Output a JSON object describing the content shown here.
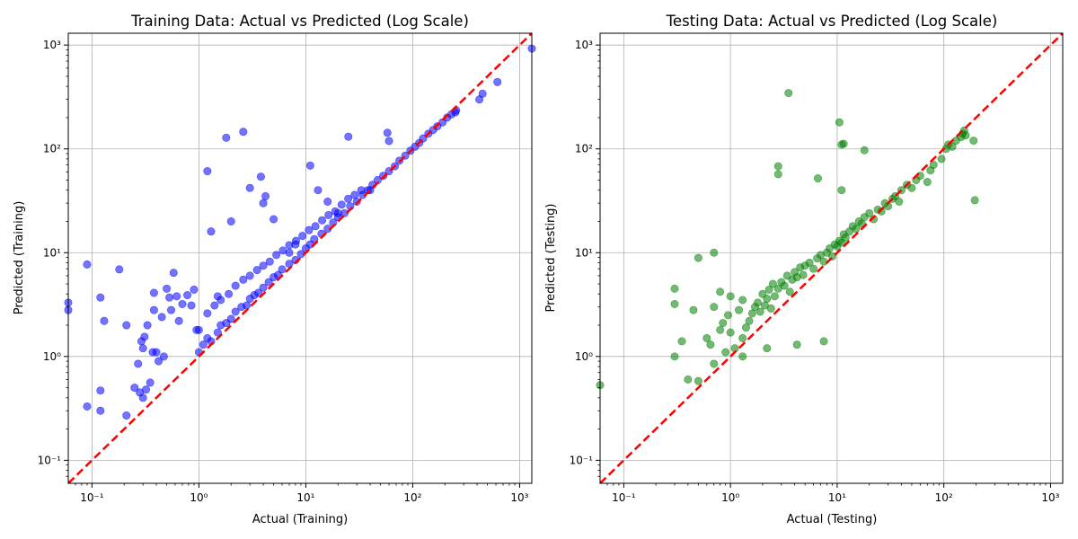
{
  "chart_data": [
    {
      "type": "scatter",
      "title": "Training Data: Actual vs Predicted (Log Scale)",
      "xlabel": "Actual (Training)",
      "ylabel": "Predicted (Training)",
      "xscale": "log",
      "yscale": "log",
      "xlim": [
        0.06,
        1300
      ],
      "ylim": [
        0.06,
        1300
      ],
      "xticks": [
        0.1,
        1,
        10,
        100,
        1000
      ],
      "yticks": [
        0.1,
        1,
        10,
        100,
        1000
      ],
      "grid": true,
      "point_color": "#0000ff",
      "reference_line": {
        "from": 0.06,
        "to": 1300,
        "color": "#ff0000",
        "style": "dashed"
      },
      "x": [
        0.06,
        0.06,
        0.09,
        0.09,
        0.12,
        0.12,
        0.12,
        0.13,
        0.18,
        0.21,
        0.21,
        0.25,
        0.27,
        0.28,
        0.29,
        0.3,
        0.3,
        0.31,
        0.32,
        0.33,
        0.35,
        0.37,
        0.38,
        0.38,
        0.4,
        0.42,
        0.45,
        0.47,
        0.5,
        0.53,
        0.55,
        0.58,
        0.62,
        0.65,
        0.7,
        0.78,
        0.85,
        0.9,
        0.95,
        1.2,
        1.3,
        1.5,
        1.8,
        2.0,
        2.6,
        3.0,
        3.8,
        4.0,
        4.2,
        5.0,
        7.0,
        8.0,
        11.0,
        13.0,
        16.0,
        20.0,
        25.0,
        40.0,
        58.0,
        60.0,
        250.0,
        420.0,
        450.0,
        620.0,
        1300.0,
        1.0,
        1.1,
        1.2,
        1.3,
        1.5,
        1.6,
        1.8,
        2.0,
        2.2,
        2.5,
        2.8,
        3.0,
        3.3,
        3.6,
        4.0,
        4.5,
        5.0,
        5.5,
        6.0,
        7.0,
        8.0,
        9.0,
        10.0,
        11.0,
        12.0,
        14.0,
        16.0,
        18.0,
        20.0,
        23.0,
        26.0,
        30.0,
        34.0,
        38.0,
        42.0,
        47.0,
        53.0,
        60.0,
        68.0,
        75.0,
        85.0,
        95.0,
        105.0,
        115.0,
        125.0,
        140.0,
        155.0,
        170.0,
        190.0,
        210.0,
        230.0,
        255.0,
        1.0,
        1.2,
        1.4,
        1.6,
        1.9,
        2.2,
        2.6,
        3.0,
        3.5,
        4.0,
        4.6,
        5.3,
        6.1,
        7.0,
        8.1,
        9.3,
        10.7,
        12.3,
        14.2,
        16.3,
        18.8,
        21.6,
        24.9,
        28.6,
        33.0
      ],
      "y": [
        3.3,
        2.8,
        7.7,
        0.33,
        3.7,
        0.47,
        0.3,
        2.2,
        6.9,
        2.0,
        0.27,
        0.5,
        0.85,
        0.45,
        1.4,
        1.2,
        0.4,
        1.55,
        0.48,
        2.0,
        0.56,
        1.1,
        4.1,
        2.8,
        1.1,
        0.9,
        2.4,
        1.0,
        4.5,
        3.7,
        2.8,
        6.4,
        3.8,
        2.2,
        3.2,
        3.9,
        3.1,
        4.4,
        1.8,
        61.0,
        16.0,
        3.8,
        128.0,
        20.0,
        146.0,
        42.0,
        54.0,
        30.0,
        35.0,
        21.0,
        10.0,
        12.0,
        69.0,
        40.0,
        31.0,
        24.0,
        131.0,
        40.0,
        143.0,
        119.0,
        225.0,
        299.0,
        340.0,
        440.0,
        925.0,
        1.1,
        1.3,
        1.5,
        1.4,
        1.7,
        2.0,
        2.1,
        2.3,
        2.7,
        3.0,
        3.1,
        3.6,
        3.9,
        4.1,
        4.6,
        5.2,
        5.8,
        6.1,
        6.9,
        7.8,
        8.5,
        9.7,
        11.0,
        12.0,
        13.5,
        15.2,
        17.0,
        19.5,
        22.0,
        24.0,
        28.0,
        31.0,
        36.0,
        40.0,
        45.0,
        50.0,
        55.0,
        61.0,
        68.0,
        77.0,
        86.0,
        96.0,
        105.0,
        114.0,
        126.0,
        140.0,
        152.0,
        165.0,
        180.0,
        200.0,
        215.0,
        235.0,
        1.8,
        2.6,
        3.1,
        3.5,
        4.0,
        4.8,
        5.5,
        6.0,
        6.8,
        7.5,
        8.2,
        9.5,
        10.5,
        11.8,
        13.0,
        14.5,
        16.5,
        18.0,
        20.5,
        23.0,
        25.0,
        29.0,
        33.0,
        36.0,
        40.0
      ]
    },
    {
      "type": "scatter",
      "title": "Testing Data: Actual vs Predicted (Log Scale)",
      "xlabel": "Actual (Testing)",
      "ylabel": "Predicted (Testing)",
      "xscale": "log",
      "yscale": "log",
      "xlim": [
        0.06,
        1300
      ],
      "ylim": [
        0.06,
        1300
      ],
      "xticks": [
        0.1,
        1,
        10,
        100,
        1000
      ],
      "yticks": [
        0.1,
        1,
        10,
        100,
        1000
      ],
      "grid": true,
      "point_color": "#008000",
      "reference_line": {
        "from": 0.06,
        "to": 1300,
        "color": "#ff0000",
        "style": "dashed"
      },
      "x": [
        0.06,
        0.3,
        0.3,
        0.3,
        0.35,
        0.4,
        0.45,
        0.5,
        0.5,
        0.6,
        0.65,
        0.7,
        0.7,
        0.7,
        0.8,
        0.8,
        0.85,
        0.9,
        0.95,
        1.0,
        1.0,
        1.1,
        1.2,
        1.3,
        1.3,
        1.4,
        1.5,
        1.6,
        1.7,
        1.8,
        1.9,
        2.0,
        2.1,
        2.2,
        2.3,
        2.4,
        2.5,
        2.6,
        2.8,
        3.0,
        3.2,
        3.4,
        3.6,
        3.8,
        4.0,
        4.2,
        4.5,
        4.8,
        5.0,
        5.5,
        6.0,
        6.5,
        7.0,
        7.5,
        8.0,
        8.5,
        9.0,
        9.5,
        10.0,
        10.5,
        11.0,
        11.5,
        12.0,
        13.0,
        14.0,
        15.0,
        16.0,
        17.0,
        18.0,
        20.0,
        22.0,
        24.0,
        26.0,
        28.0,
        30.0,
        33.0,
        35.0,
        38.0,
        40.0,
        45.0,
        50.0,
        55.0,
        60.0,
        70.0,
        75.0,
        80.0,
        95.0,
        105.0,
        110.0,
        120.0,
        130.0,
        145.0,
        150.0,
        155.0,
        160.0,
        190.0,
        195.0,
        3.5,
        10.5,
        11.0,
        11.5,
        2.8,
        2.8,
        6.6,
        18.0,
        11.0,
        1.3,
        2.2,
        4.2,
        7.5
      ],
      "y": [
        0.53,
        1.0,
        3.2,
        4.5,
        1.4,
        0.6,
        2.8,
        0.58,
        8.9,
        1.5,
        1.3,
        0.85,
        3.0,
        10.0,
        1.8,
        4.2,
        2.1,
        1.1,
        2.5,
        1.7,
        3.8,
        1.2,
        2.8,
        1.5,
        3.5,
        1.9,
        2.2,
        2.6,
        3.0,
        3.3,
        2.7,
        4.0,
        3.1,
        3.6,
        4.4,
        2.9,
        5.0,
        3.8,
        4.5,
        5.2,
        4.8,
        6.0,
        4.2,
        5.5,
        6.5,
        5.8,
        7.2,
        6.1,
        7.5,
        8.0,
        7.0,
        8.8,
        9.5,
        8.2,
        10.0,
        11.0,
        9.2,
        12.0,
        11.5,
        13.0,
        12.5,
        15.0,
        14.0,
        16.0,
        18.0,
        17.0,
        20.0,
        19.0,
        22.0,
        24.0,
        21.0,
        26.0,
        25.0,
        30.0,
        28.0,
        33.0,
        35.0,
        31.0,
        40.0,
        45.0,
        42.0,
        50.0,
        55.0,
        48.0,
        62.0,
        70.0,
        80.0,
        100.0,
        110.0,
        105.0,
        120.0,
        130.0,
        140.0,
        150.0,
        135.0,
        120.0,
        32.0,
        345.0,
        180.0,
        110.0,
        112.0,
        57.0,
        68.0,
        52.0,
        97.0,
        40.0,
        1.0,
        1.2,
        1.3,
        1.4
      ]
    }
  ]
}
